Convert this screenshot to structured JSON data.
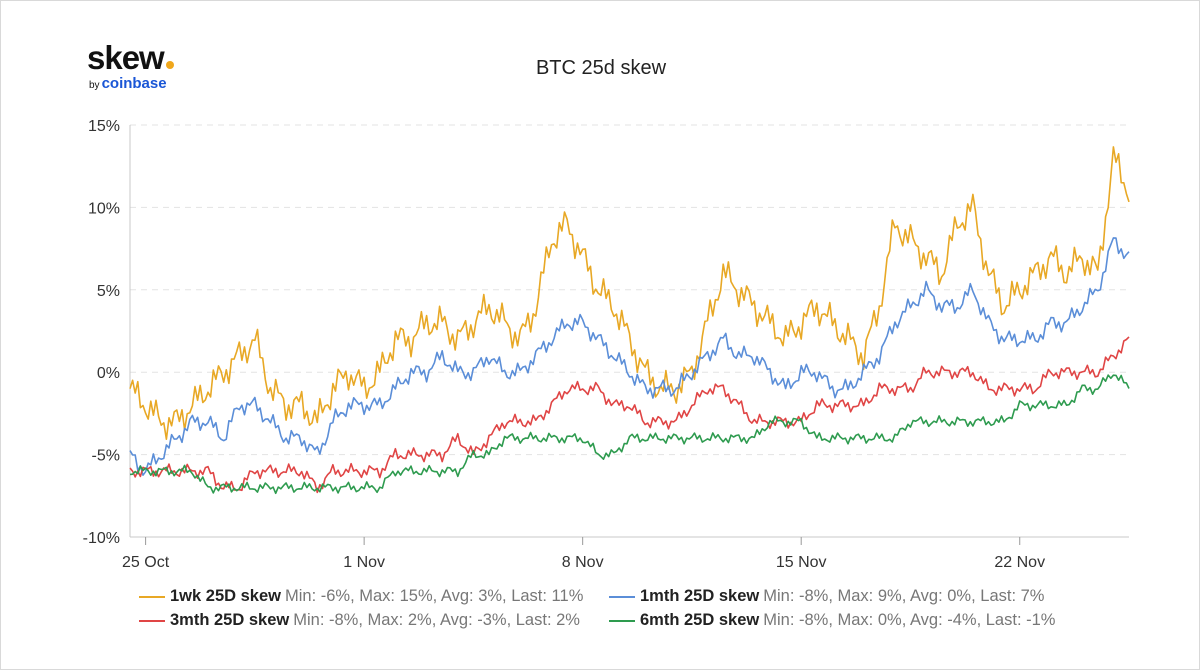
{
  "logo": {
    "word": "skew",
    "by": "by",
    "brand": "coinbase"
  },
  "chart_data": {
    "type": "line",
    "title": "BTC 25d skew",
    "xlabel": "",
    "ylabel": "",
    "ylim": [
      -10,
      15
    ],
    "y_ticks": [
      "15%",
      "10%",
      "5%",
      "0%",
      "-5%",
      "-10%"
    ],
    "y_tick_values": [
      15,
      10,
      5,
      0,
      -5,
      -10
    ],
    "x_ticks": [
      "25 Oct",
      "1 Nov",
      "8 Nov",
      "15 Nov",
      "22 Nov"
    ],
    "x_tick_days": [
      0,
      7,
      14,
      21,
      28
    ],
    "x_range_days": [
      -0.5,
      31.5
    ],
    "grid": true,
    "legend_position": "bottom",
    "series": [
      {
        "name": "1wk 25D skew",
        "stats": "Min: -6%, Max: 15%, Avg: 3%, Last: 11%",
        "color": "#e8a825",
        "x": [
          -0.5,
          0,
          0.5,
          1,
          1.5,
          2,
          2.5,
          3,
          3.5,
          4,
          4.5,
          5,
          5.5,
          6,
          6.5,
          7,
          7.5,
          8,
          8.5,
          9,
          9.5,
          10,
          10.5,
          11,
          11.5,
          12,
          12.5,
          13,
          13.5,
          14,
          14.5,
          15,
          15.5,
          16,
          16.5,
          17,
          17.5,
          18,
          18.5,
          19,
          19.5,
          20,
          20.5,
          21,
          21.5,
          22,
          22.5,
          23,
          23.5,
          24,
          24.5,
          25,
          25.5,
          26,
          26.5,
          27,
          27.5,
          28,
          28.5,
          29,
          29.5,
          30,
          30.5,
          31,
          31.5
        ],
        "y": [
          -1,
          -2,
          -3,
          -3,
          -2,
          -1,
          0,
          1,
          2,
          -1,
          -2,
          -2,
          -3,
          -1,
          0,
          -1,
          0,
          2,
          2,
          3,
          3,
          2,
          3,
          4,
          3,
          2,
          4,
          8,
          9,
          7,
          5,
          4,
          2,
          0,
          -1,
          -1,
          0,
          3,
          6,
          5,
          4,
          3,
          2,
          3,
          4,
          3,
          2,
          1,
          4,
          9,
          8,
          7,
          6,
          9,
          10,
          6,
          4,
          5,
          6,
          7,
          6,
          7,
          6,
          13,
          11
        ]
      },
      {
        "name": "1mth 25D skew",
        "stats": "Min: -8%, Max: 9%, Avg: 0%, Last: 7%",
        "color": "#5b8ed8",
        "x": [
          -0.5,
          0,
          0.5,
          1,
          1.5,
          2,
          2.5,
          3,
          3.5,
          4,
          4.5,
          5,
          5.5,
          6,
          6.5,
          7,
          7.5,
          8,
          8.5,
          9,
          9.5,
          10,
          10.5,
          11,
          11.5,
          12,
          12.5,
          13,
          13.5,
          14,
          14.5,
          15,
          15.5,
          16,
          16.5,
          17,
          17.5,
          18,
          18.5,
          19,
          19.5,
          20,
          20.5,
          21,
          21.5,
          22,
          22.5,
          23,
          23.5,
          24,
          24.5,
          25,
          25.5,
          26,
          26.5,
          27,
          27.5,
          28,
          28.5,
          29,
          29.5,
          30,
          30.5,
          31,
          31.5
        ],
        "y": [
          -5,
          -6,
          -5,
          -4,
          -3,
          -3,
          -4,
          -2,
          -2,
          -3,
          -4,
          -4,
          -5,
          -3,
          -2,
          -2,
          -2,
          -1,
          0,
          0,
          1,
          0,
          0,
          1,
          0,
          0,
          1,
          2,
          3,
          3,
          2,
          1,
          0,
          -1,
          -1,
          -1,
          0,
          1,
          2,
          1,
          1,
          0,
          -1,
          0,
          0,
          -1,
          -1,
          0,
          1,
          3,
          4,
          5,
          4,
          4,
          5,
          3,
          2,
          2,
          2,
          3,
          3,
          4,
          5,
          8,
          7
        ]
      },
      {
        "name": "3mth 25D skew",
        "stats": "Min: -8%, Max: 2%, Avg: -3%, Last: 2%",
        "color": "#e04545",
        "x": [
          -0.5,
          0,
          0.5,
          1,
          1.5,
          2,
          2.5,
          3,
          3.5,
          4,
          4.5,
          5,
          5.5,
          6,
          6.5,
          7,
          7.5,
          8,
          8.5,
          9,
          9.5,
          10,
          10.5,
          11,
          11.5,
          12,
          12.5,
          13,
          13.5,
          14,
          14.5,
          15,
          15.5,
          16,
          16.5,
          17,
          17.5,
          18,
          18.5,
          19,
          19.5,
          20,
          20.5,
          21,
          21.5,
          22,
          22.5,
          23,
          23.5,
          24,
          24.5,
          25,
          25.5,
          26,
          26.5,
          27,
          27.5,
          28,
          28.5,
          29,
          29.5,
          30,
          30.5,
          31,
          31.5
        ],
        "y": [
          -6,
          -6,
          -6,
          -6,
          -6,
          -6,
          -7,
          -7,
          -6,
          -6,
          -6,
          -6,
          -7,
          -6,
          -6,
          -6,
          -6,
          -5,
          -5,
          -5,
          -5,
          -4,
          -5,
          -4,
          -3,
          -3,
          -3,
          -2,
          -1,
          -1,
          -1,
          -2,
          -2,
          -3,
          -3,
          -3,
          -2,
          -1,
          -1,
          -2,
          -3,
          -3,
          -3,
          -3,
          -2,
          -2,
          -2,
          -2,
          -1,
          -1,
          -1,
          0,
          0,
          0,
          0,
          -1,
          -1,
          -1,
          -1,
          0,
          0,
          0,
          0,
          1,
          2
        ]
      },
      {
        "name": "6mth 25D skew",
        "stats": "Min: -8%, Max: 0%, Avg: -4%, Last: -1%",
        "color": "#2e9b4f",
        "x": [
          -0.5,
          0,
          0.5,
          1,
          1.5,
          2,
          2.5,
          3,
          3.5,
          4,
          4.5,
          5,
          5.5,
          6,
          6.5,
          7,
          7.5,
          8,
          8.5,
          9,
          9.5,
          10,
          10.5,
          11,
          11.5,
          12,
          12.5,
          13,
          13.5,
          14,
          14.5,
          15,
          15.5,
          16,
          16.5,
          17,
          17.5,
          18,
          18.5,
          19,
          19.5,
          20,
          20.5,
          21,
          21.5,
          22,
          22.5,
          23,
          23.5,
          24,
          24.5,
          25,
          25.5,
          26,
          26.5,
          27,
          27.5,
          28,
          28.5,
          29,
          29.5,
          30,
          30.5,
          31,
          31.5
        ],
        "y": [
          -6,
          -6,
          -6,
          -6,
          -6,
          -7,
          -7,
          -7,
          -7,
          -7,
          -7,
          -7,
          -7,
          -7,
          -7,
          -7,
          -7,
          -6,
          -6,
          -6,
          -6,
          -6,
          -5,
          -5,
          -4,
          -4,
          -4,
          -4,
          -4,
          -4,
          -5,
          -5,
          -4,
          -4,
          -4,
          -4,
          -4,
          -4,
          -4,
          -4,
          -4,
          -3,
          -3,
          -3,
          -4,
          -4,
          -4,
          -4,
          -4,
          -4,
          -3,
          -3,
          -3,
          -3,
          -3,
          -3,
          -3,
          -2,
          -2,
          -2,
          -2,
          -1,
          -1,
          0,
          -1
        ]
      }
    ]
  }
}
